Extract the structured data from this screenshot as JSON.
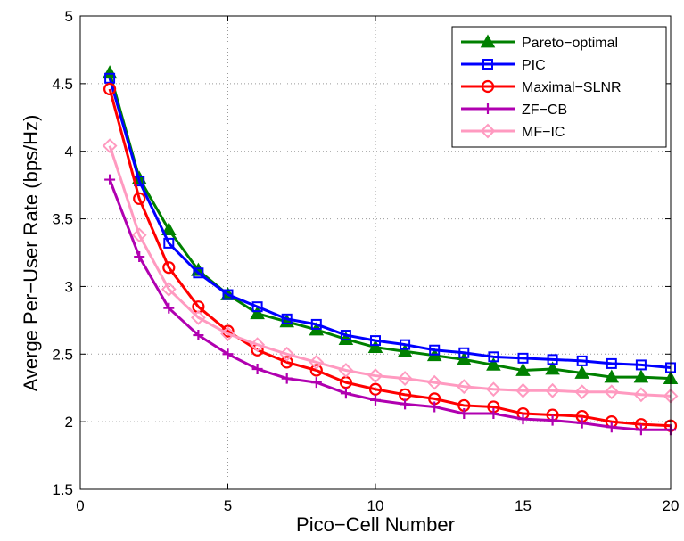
{
  "chart_data": {
    "type": "line",
    "title": "",
    "xlabel": "Pico−Cell Number",
    "ylabel": "Averge Per−User Rate (bps/Hz)",
    "xlim": [
      0,
      20
    ],
    "ylim": [
      1.5,
      5
    ],
    "xticks": [
      0,
      5,
      10,
      15,
      20
    ],
    "yticks": [
      1.5,
      2,
      2.5,
      3,
      3.5,
      4,
      4.5,
      5
    ],
    "xtick_labels": [
      "0",
      "5",
      "10",
      "15",
      "20"
    ],
    "ytick_labels": [
      "1.5",
      "2",
      "2.5",
      "3",
      "3.5",
      "4",
      "4.5",
      "5"
    ],
    "grid": true,
    "legend_position": "top-right",
    "x": [
      1,
      2,
      3,
      4,
      5,
      6,
      7,
      8,
      9,
      10,
      11,
      12,
      13,
      14,
      15,
      16,
      17,
      18,
      19,
      20
    ],
    "series": [
      {
        "name": "Pareto−optimal",
        "color": "#008000",
        "marker": "triangle",
        "values": [
          4.58,
          3.8,
          3.42,
          3.12,
          2.94,
          2.8,
          2.74,
          2.68,
          2.61,
          2.55,
          2.52,
          2.49,
          2.46,
          2.42,
          2.38,
          2.39,
          2.36,
          2.33,
          2.33,
          2.32
        ]
      },
      {
        "name": "PIC",
        "color": "#0000ff",
        "marker": "square",
        "values": [
          4.54,
          3.78,
          3.32,
          3.1,
          2.94,
          2.85,
          2.76,
          2.72,
          2.64,
          2.6,
          2.57,
          2.53,
          2.51,
          2.48,
          2.47,
          2.46,
          2.45,
          2.43,
          2.42,
          2.4
        ]
      },
      {
        "name": "Maximal−SLNR",
        "color": "#ff0000",
        "marker": "circle",
        "values": [
          4.46,
          3.65,
          3.14,
          2.85,
          2.67,
          2.53,
          2.44,
          2.38,
          2.29,
          2.24,
          2.2,
          2.17,
          2.12,
          2.11,
          2.06,
          2.05,
          2.04,
          2.0,
          1.98,
          1.97
        ]
      },
      {
        "name": "ZF−CB",
        "color": "#b000b0",
        "marker": "plus",
        "values": [
          3.79,
          3.22,
          2.84,
          2.64,
          2.5,
          2.39,
          2.32,
          2.29,
          2.21,
          2.16,
          2.13,
          2.11,
          2.06,
          2.06,
          2.02,
          2.01,
          1.99,
          1.96,
          1.94,
          1.94
        ]
      },
      {
        "name": "MF−IC",
        "color": "#ff9ac0",
        "marker": "diamond",
        "values": [
          4.04,
          3.38,
          2.98,
          2.77,
          2.65,
          2.57,
          2.5,
          2.44,
          2.38,
          2.34,
          2.32,
          2.29,
          2.26,
          2.24,
          2.23,
          2.23,
          2.22,
          2.22,
          2.2,
          2.19
        ]
      }
    ]
  }
}
